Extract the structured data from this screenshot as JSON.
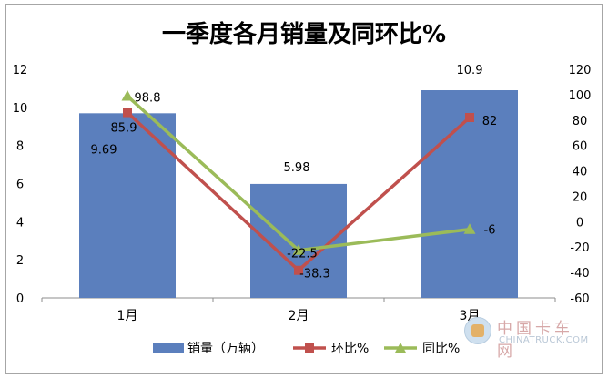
{
  "chart_data": {
    "type": "bar",
    "title": "一季度各月销量及同环比%",
    "categories": [
      "1月",
      "2月",
      "3月"
    ],
    "series": [
      {
        "name": "销量（万辆）",
        "type": "bar",
        "axis": "left",
        "values": [
          9.69,
          5.98,
          10.9
        ],
        "labels": [
          "9.69",
          "5.98",
          "10.9"
        ],
        "color": "#5b7fbd"
      },
      {
        "name": "环比%",
        "type": "line",
        "axis": "right",
        "marker": "square",
        "values": [
          85.9,
          -38.3,
          82
        ],
        "labels": [
          "85.9",
          "-38.3",
          "82"
        ],
        "color": "#c0504d"
      },
      {
        "name": "同比%",
        "type": "line",
        "axis": "right",
        "marker": "triangle",
        "values": [
          98.8,
          -22.5,
          -6
        ],
        "labels": [
          "98.8",
          "-22.5",
          "-6"
        ],
        "color": "#9bbb59"
      }
    ],
    "y_left": {
      "range": [
        0,
        12
      ],
      "ticks": [
        "0",
        "2",
        "4",
        "6",
        "8",
        "10",
        "12"
      ]
    },
    "y_right": {
      "range": [
        -60,
        120
      ],
      "ticks": [
        "-60",
        "-40",
        "-20",
        "0",
        "20",
        "40",
        "60",
        "80",
        "100",
        "120"
      ]
    },
    "grid": false,
    "legend_position": "bottom"
  },
  "watermark": {
    "name_cn": "中国卡车网",
    "name_en": "CHINATRUCK.COM"
  }
}
